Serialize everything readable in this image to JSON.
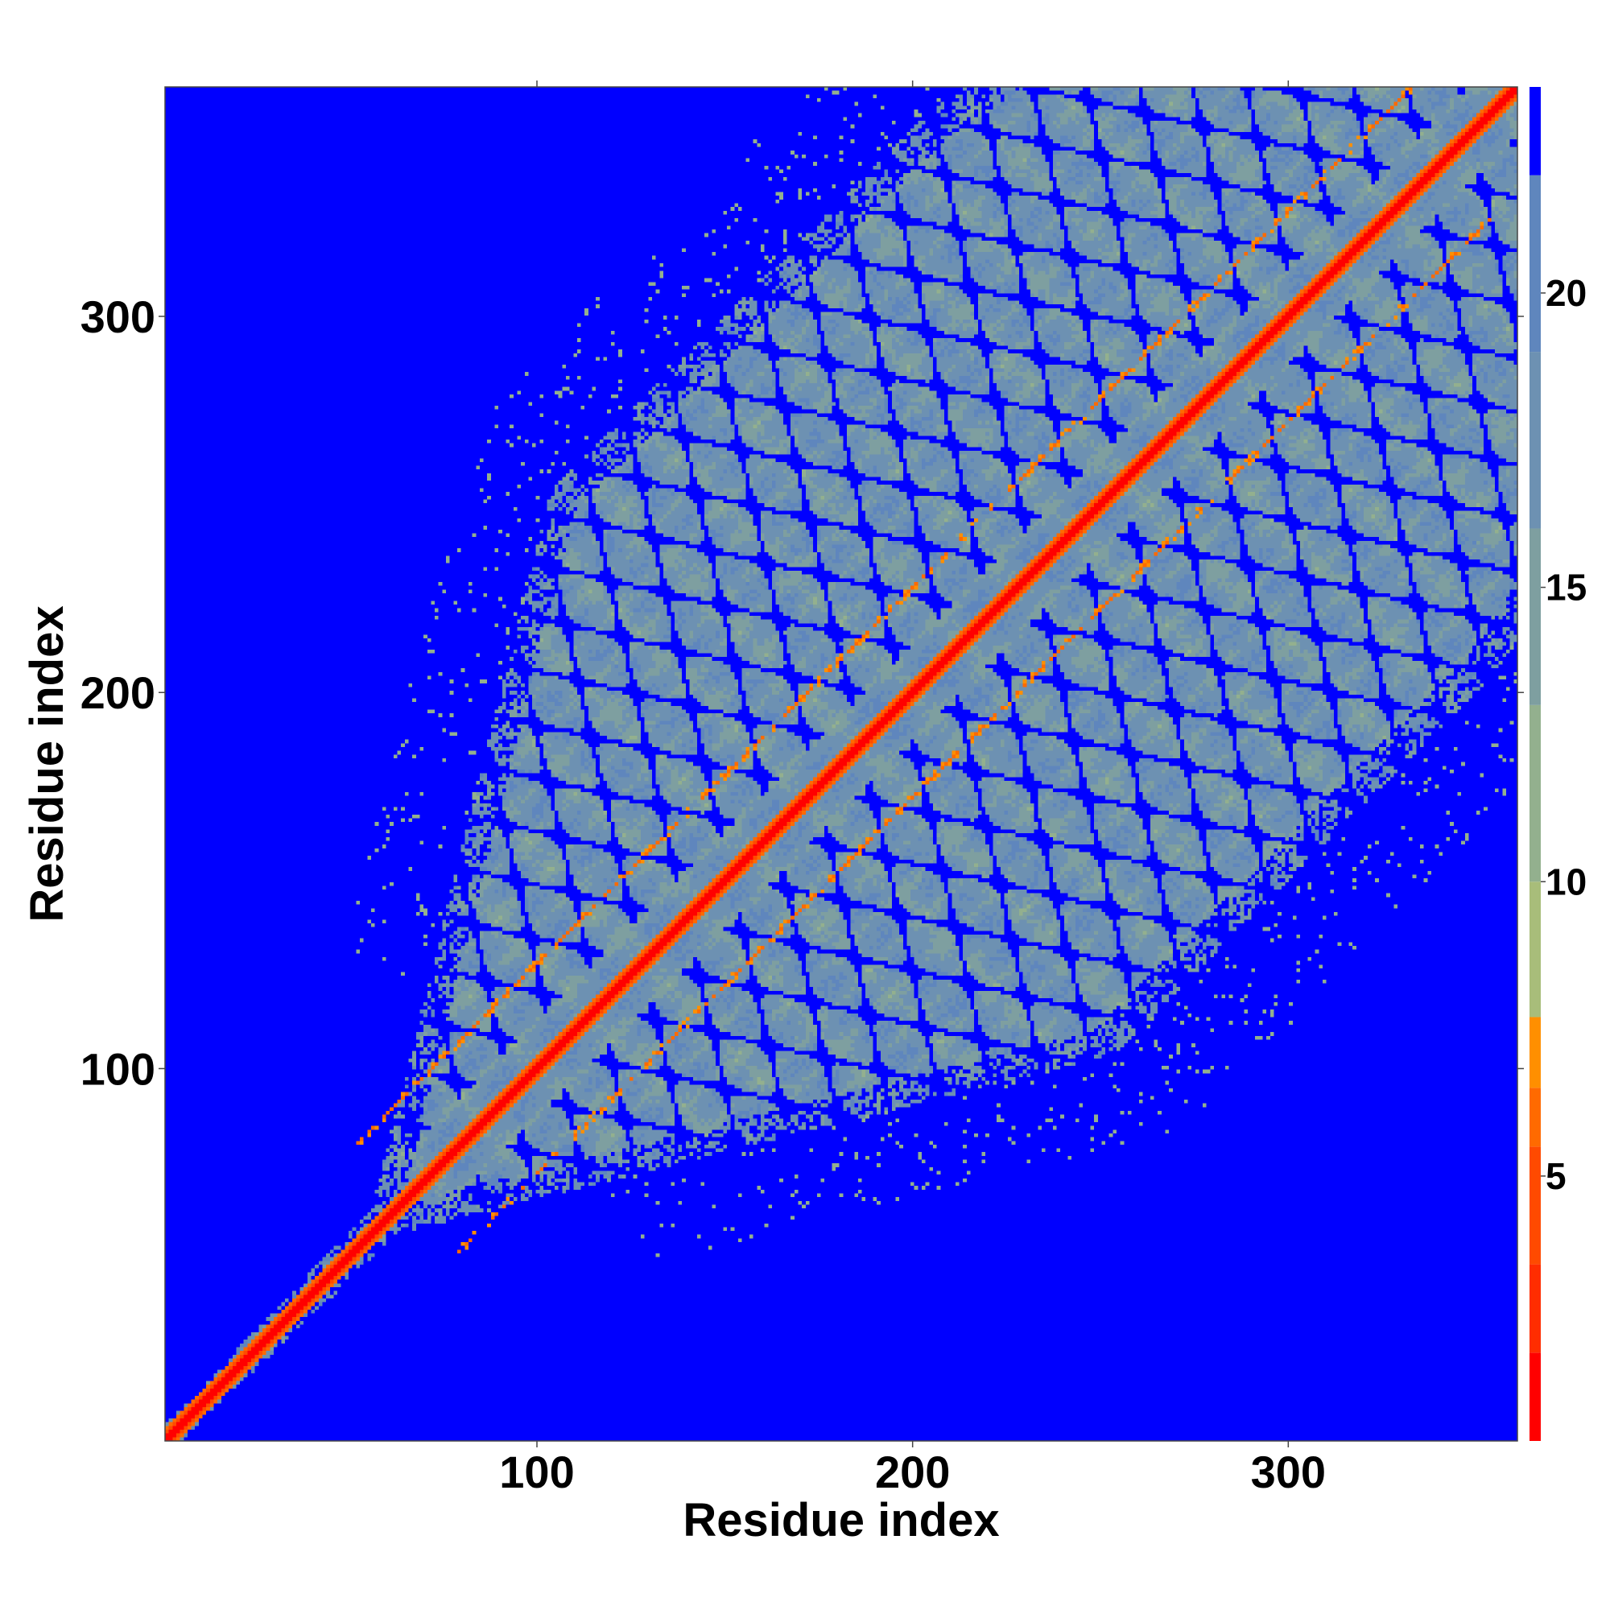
{
  "chart_data": {
    "type": "heatmap",
    "title": "",
    "xlabel": "Residue index",
    "ylabel": "Residue index",
    "xlim": [
      1,
      361
    ],
    "ylim": [
      1,
      361
    ],
    "x_ticks": [
      100,
      200,
      300
    ],
    "y_ticks": [
      100,
      200,
      300
    ],
    "colorbar": {
      "ticks": [
        5,
        10,
        15,
        20
      ],
      "range": [
        0.5,
        23.5
      ],
      "levels": [
        {
          "max": 2.0,
          "color": "#ff0000"
        },
        {
          "max": 3.5,
          "color": "#ff2d00"
        },
        {
          "max": 5.5,
          "color": "#ff4a00"
        },
        {
          "max": 6.5,
          "color": "#ff6a00"
        },
        {
          "max": 7.7,
          "color": "#ff8f00"
        },
        {
          "max": 10.0,
          "color": "#a8bd7a"
        },
        {
          "max": 13.0,
          "color": "#93b08e"
        },
        {
          "max": 16.0,
          "color": "#7e9fa0"
        },
        {
          "max": 19.0,
          "color": "#6d91b2"
        },
        {
          "max": 22.0,
          "color": "#5f86bd"
        },
        {
          "max": 23.5,
          "color": "#0000ff"
        }
      ]
    },
    "background_color": "#0000ff",
    "grid": false,
    "features": {
      "main_diagonal": {
        "value": 2,
        "start": 1,
        "end": 361
      },
      "helix_cluster_start": 62,
      "side_bands": [
        {
          "offset": 28,
          "value": 6,
          "start": 65,
          "end": 361
        },
        {
          "offset": -28,
          "value": 6,
          "start": 65,
          "end": 340
        }
      ],
      "contact_region_values": [
        9,
        21
      ]
    }
  }
}
